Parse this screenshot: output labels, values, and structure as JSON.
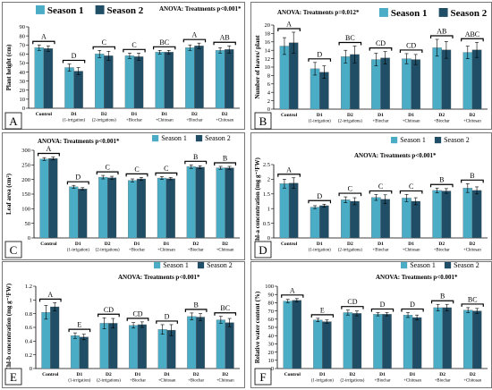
{
  "figure": {
    "title": ""
  },
  "colors": {
    "season1": "#4BACC6",
    "season2": "#1F4E66",
    "panel_border": "#555555",
    "letter_box": "#ffffff"
  },
  "chart_data": [
    {
      "type": "bar",
      "panel_letter": "A",
      "anova": "ANOVA: Treatments p<0.001*",
      "ylabel": "Plant height (cm)",
      "ylim": [
        0,
        90
      ],
      "yticks": [
        0,
        10,
        20,
        30,
        40,
        50,
        60,
        70,
        80,
        90
      ],
      "categories": [
        [
          "Control"
        ],
        [
          "D1",
          "(1-irrigation)"
        ],
        [
          "D2",
          "(2-irrigations)"
        ],
        [
          "D1",
          "+Biochar"
        ],
        [
          "D1",
          "+Chitosan"
        ],
        [
          "D2",
          "+Biochar"
        ],
        [
          "D2",
          "+Chitosan"
        ]
      ],
      "letters": [
        "A",
        "D",
        "C",
        "C",
        "BC",
        "A",
        "AB"
      ],
      "series": [
        {
          "name": "Season 1",
          "values": [
            67,
            45,
            60,
            58,
            62,
            67,
            64
          ],
          "errors": [
            3,
            4,
            4,
            3,
            2,
            3,
            3
          ]
        },
        {
          "name": "Season 2",
          "values": [
            66,
            41,
            58,
            57,
            62,
            69,
            65
          ],
          "errors": [
            3,
            4,
            5,
            4,
            2,
            3,
            4
          ]
        }
      ]
    },
    {
      "type": "bar",
      "panel_letter": "B",
      "anova": "ANOVA: Treatments p=0.012*",
      "ylabel": "Number of leaves/ plant",
      "ylim": [
        0,
        20
      ],
      "yticks": [
        0,
        2,
        4,
        6,
        8,
        10,
        12,
        14,
        16,
        18,
        20
      ],
      "categories": [
        [
          "Control"
        ],
        [
          "D1",
          "(1-irrigation)"
        ],
        [
          "D2",
          "(2-irrigations)"
        ],
        [
          "D1",
          "+Biochar"
        ],
        [
          "D1",
          "+Chitosan"
        ],
        [
          "D2",
          "+Biochar"
        ],
        [
          "D2",
          "+Chitosan"
        ]
      ],
      "letters": [
        "A",
        "D",
        "BC",
        "CD",
        "CD",
        "AB",
        "ABC"
      ],
      "series": [
        {
          "name": "Season 1",
          "values": [
            15,
            9.6,
            12.5,
            11.8,
            12,
            14.6,
            13.5
          ],
          "errors": [
            2,
            1.5,
            1.5,
            1.5,
            1.2,
            2,
            1.5
          ]
        },
        {
          "name": "Season 2",
          "values": [
            15.8,
            8.8,
            13,
            12.2,
            11.8,
            14.1,
            14.1
          ],
          "errors": [
            2.5,
            1.5,
            2,
            1.5,
            1.2,
            2,
            1.8
          ]
        }
      ]
    },
    {
      "type": "bar",
      "panel_letter": "C",
      "anova": "ANOVA: Treatments p<0.001*",
      "ylabel": "Leaf area (cm²)",
      "ylim": [
        0,
        300
      ],
      "yticks": [
        0,
        50,
        100,
        150,
        200,
        250,
        300
      ],
      "categories": [
        [
          "Control"
        ],
        [
          "D1",
          "(1-irrigation)"
        ],
        [
          "D2",
          "(2-irrigations)"
        ],
        [
          "D1",
          "+Biochar"
        ],
        [
          "D1",
          "+Chitosan"
        ],
        [
          "D2",
          "+Biochar"
        ],
        [
          "D2",
          "+Chitosan"
        ]
      ],
      "letters": [
        "A",
        "D",
        "C",
        "C",
        "C",
        "B",
        "B"
      ],
      "series": [
        {
          "name": "Season 1",
          "values": [
            270,
            175,
            208,
            197,
            205,
            244,
            240
          ],
          "errors": [
            5,
            5,
            6,
            5,
            5,
            6,
            5
          ]
        },
        {
          "name": "Season 2",
          "values": [
            272,
            168,
            206,
            202,
            203,
            242,
            240
          ],
          "errors": [
            5,
            4,
            5,
            5,
            4,
            5,
            5
          ]
        }
      ]
    },
    {
      "type": "bar",
      "panel_letter": "D",
      "anova": "ANOVA: Treatments p<0.001*",
      "ylabel": "Chl-a concentration (mg g⁻¹FW)",
      "ylim": [
        0,
        2.5
      ],
      "yticks": [
        0,
        0.5,
        1,
        1.5,
        2,
        2.5
      ],
      "categories": [
        [
          "Control"
        ],
        [
          "D1",
          "(1-irrigation)"
        ],
        [
          "D2",
          "(2-irrigations)"
        ],
        [
          "D1",
          "+Biochar"
        ],
        [
          "D1",
          "+Chitosan"
        ],
        [
          "D2",
          "+Biochar"
        ],
        [
          "D2",
          "+Chitosan"
        ]
      ],
      "letters": [
        "A",
        "D",
        "C",
        "C",
        "C",
        "B",
        "B"
      ],
      "series": [
        {
          "name": "Season 1",
          "values": [
            1.85,
            1.05,
            1.3,
            1.38,
            1.36,
            1.62,
            1.7
          ],
          "errors": [
            0.15,
            0.05,
            0.1,
            0.1,
            0.12,
            0.08,
            0.15
          ]
        },
        {
          "name": "Season 2",
          "values": [
            1.87,
            1.1,
            1.25,
            1.32,
            1.25,
            1.6,
            1.62
          ],
          "errors": [
            0.18,
            0.05,
            0.12,
            0.15,
            0.12,
            0.08,
            0.12
          ]
        }
      ]
    },
    {
      "type": "bar",
      "panel_letter": "E",
      "anova": "ANOVA: Treatments p<0.001*",
      "ylabel": "Chl-b concentration (mg g⁻¹FW)",
      "ylim": [
        0,
        1.2
      ],
      "yticks": [
        0,
        0.2,
        0.4,
        0.6,
        0.8,
        1,
        1.2
      ],
      "categories": [
        [
          "Control"
        ],
        [
          "D1",
          "(1-irrigation)"
        ],
        [
          "D2",
          "(2-irrigations)"
        ],
        [
          "D1",
          "+Biochar"
        ],
        [
          "D1",
          "+Chitosan"
        ],
        [
          "D2",
          "+Biochar"
        ],
        [
          "D2",
          "+Chitosan"
        ]
      ],
      "letters": [
        "A",
        "E",
        "CD",
        "CD",
        "D",
        "B",
        "BC"
      ],
      "series": [
        {
          "name": "Season 1",
          "values": [
            0.82,
            0.48,
            0.66,
            0.63,
            0.57,
            0.76,
            0.71
          ],
          "errors": [
            0.1,
            0.04,
            0.08,
            0.04,
            0.07,
            0.05,
            0.05
          ]
        },
        {
          "name": "Season 2",
          "values": [
            0.9,
            0.46,
            0.66,
            0.64,
            0.56,
            0.75,
            0.67
          ],
          "errors": [
            0.06,
            0.04,
            0.07,
            0.04,
            0.08,
            0.05,
            0.06
          ]
        }
      ]
    },
    {
      "type": "bar",
      "panel_letter": "F",
      "anova": "ANOVA: Treatments p<0.001*",
      "ylabel": "Relative water content (%)",
      "ylim": [
        0,
        100
      ],
      "yticks": [
        0,
        10,
        20,
        30,
        40,
        50,
        60,
        70,
        80,
        90,
        100
      ],
      "categories": [
        [
          "Control"
        ],
        [
          "D1",
          "(1-irrigation)"
        ],
        [
          "D2",
          "(2-irrigations)"
        ],
        [
          "D1",
          "+Biochar"
        ],
        [
          "D1",
          "+Chitosan"
        ],
        [
          "D2",
          "+Biochar"
        ],
        [
          "D2",
          "+Chitosan"
        ]
      ],
      "letters": [
        "A",
        "E",
        "CD",
        "D",
        "D",
        "B",
        "BC"
      ],
      "series": [
        {
          "name": "Season 1",
          "values": [
            82,
            59,
            68,
            66,
            65,
            74,
            71
          ],
          "errors": [
            2,
            2,
            3,
            2,
            3,
            4,
            3
          ]
        },
        {
          "name": "Season 2",
          "values": [
            83,
            57,
            67,
            66,
            62,
            74,
            70
          ],
          "errors": [
            2,
            2,
            3,
            2,
            3,
            4,
            3
          ]
        }
      ]
    }
  ]
}
